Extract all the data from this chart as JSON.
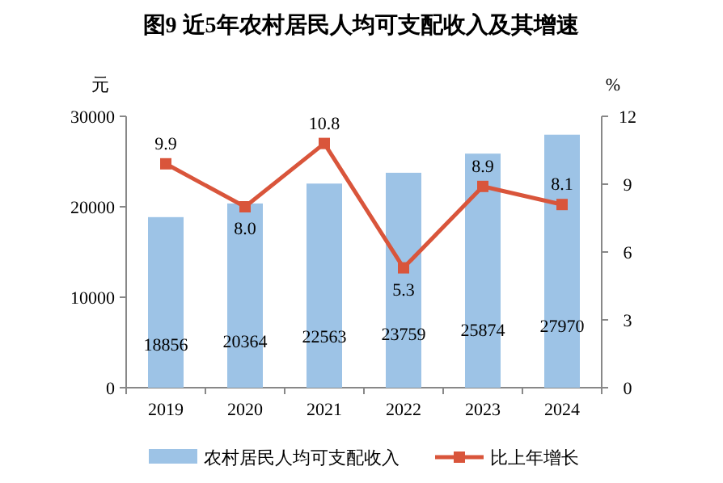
{
  "chart_data": {
    "type": "bar",
    "title": "图9  近5年农村居民人均可支配收入及其增速",
    "categories": [
      "2019",
      "2020",
      "2021",
      "2022",
      "2023",
      "2024"
    ],
    "ylabel": "元",
    "y2label": "%",
    "ylim": [
      0,
      30000
    ],
    "yticks": [
      0,
      10000,
      20000,
      30000
    ],
    "y2lim": [
      0,
      12
    ],
    "y2ticks": [
      0,
      3,
      6,
      9,
      12
    ],
    "data_labels": true,
    "legend": "bottom",
    "marker": "square",
    "series": [
      {
        "name": "农村居民人均可支配收入",
        "color": "#9dc3e6",
        "values": [
          18856,
          20364,
          22563,
          23759,
          25874,
          27970
        ]
      },
      {
        "name": "比上年增长",
        "type": "line",
        "axis": "y2",
        "color": "#d9553b",
        "values": [
          9.9,
          8.0,
          10.8,
          5.3,
          8.9,
          8.1
        ],
        "value_labels": [
          "9.9",
          "8.0",
          "10.8",
          "5.3",
          "8.9",
          "8.1"
        ]
      }
    ]
  }
}
